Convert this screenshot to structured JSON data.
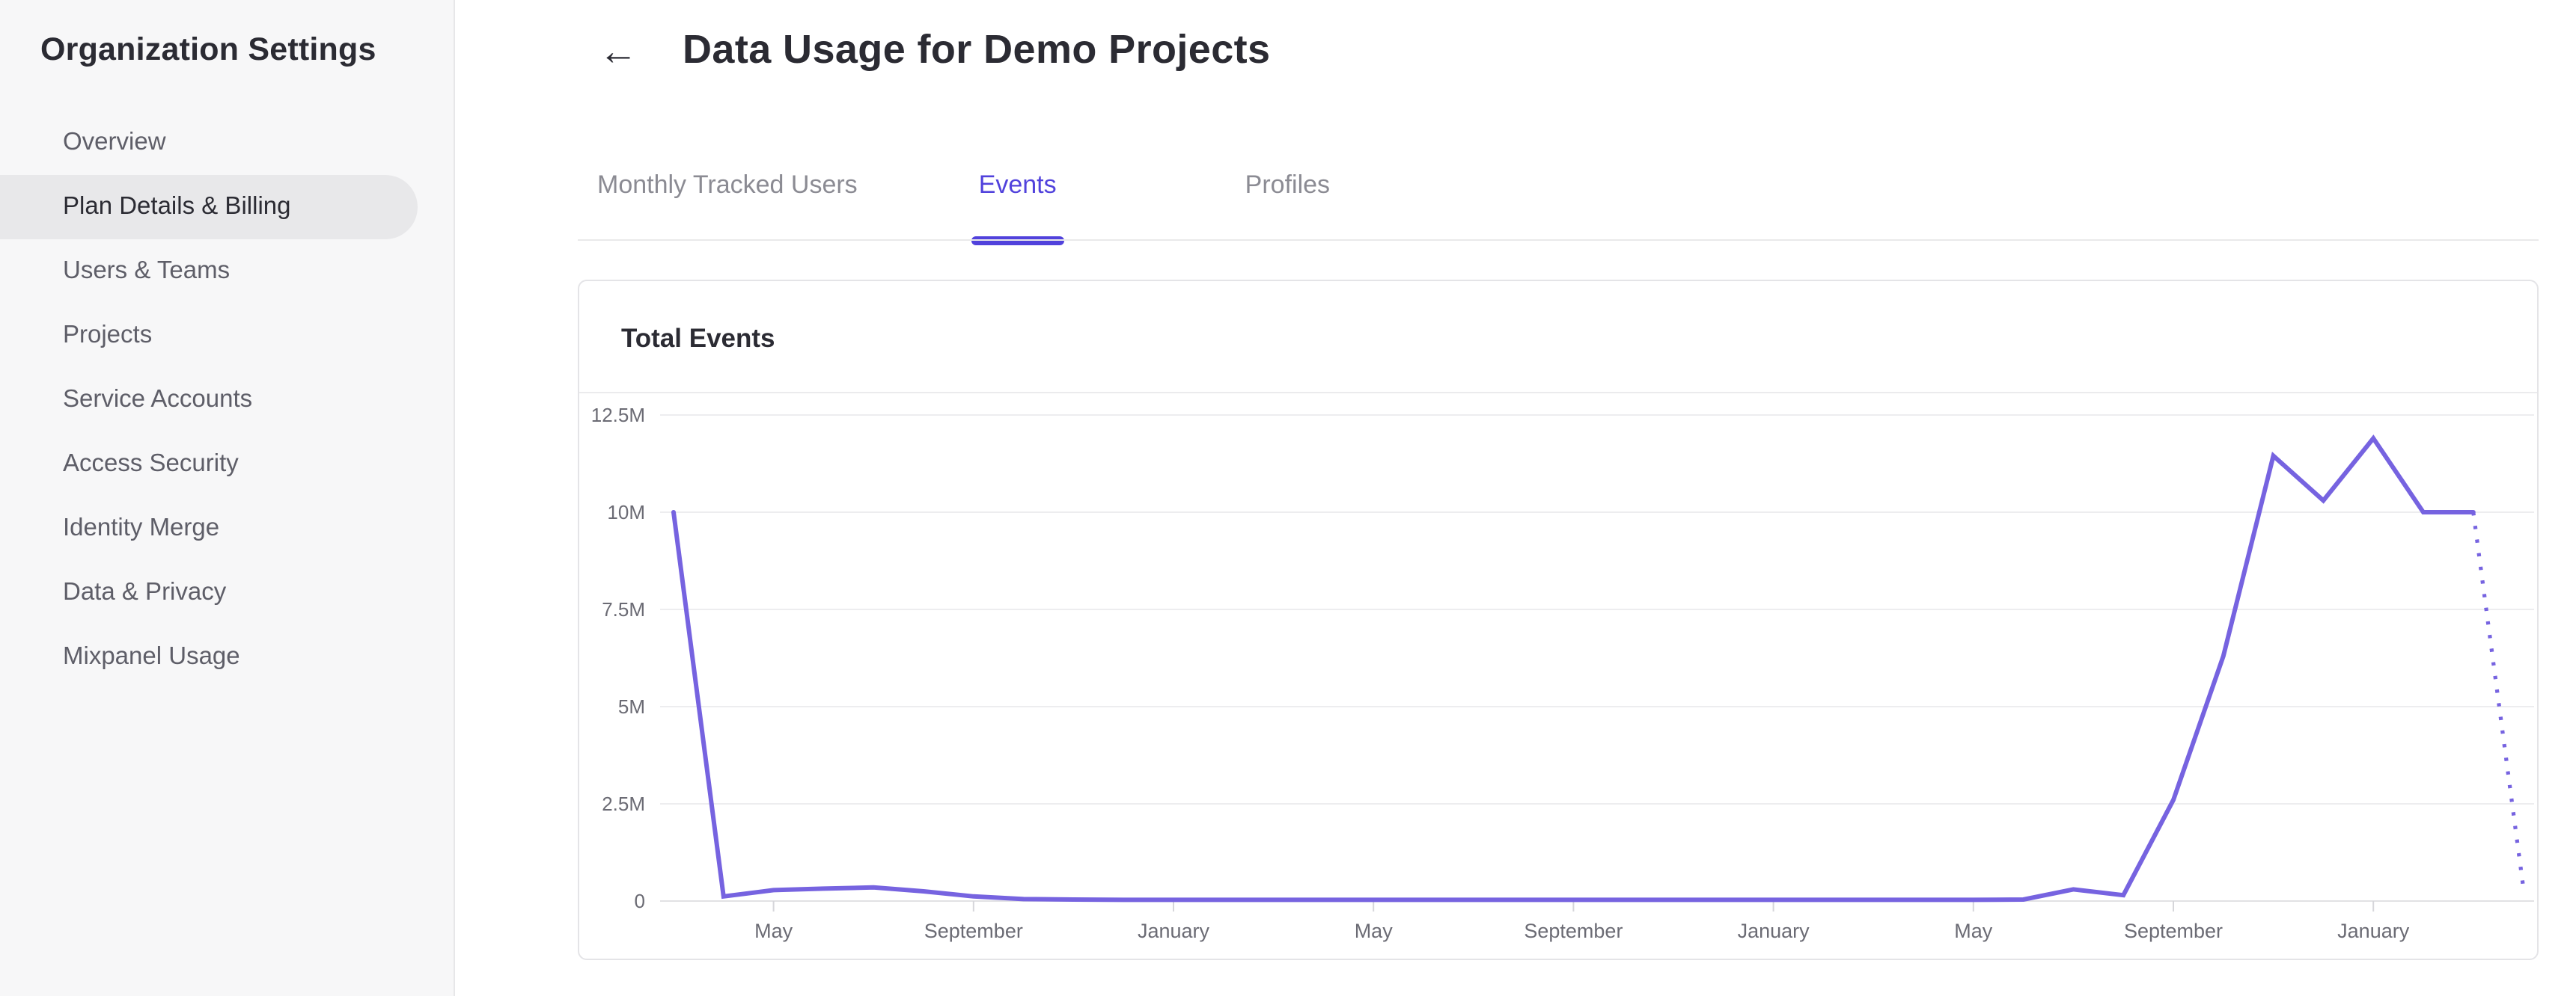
{
  "sidebar": {
    "title": "Organization Settings",
    "items": [
      {
        "label": "Overview",
        "active": false
      },
      {
        "label": "Plan Details & Billing",
        "active": true
      },
      {
        "label": "Users & Teams",
        "active": false
      },
      {
        "label": "Projects",
        "active": false
      },
      {
        "label": "Service Accounts",
        "active": false
      },
      {
        "label": "Access Security",
        "active": false
      },
      {
        "label": "Identity Merge",
        "active": false
      },
      {
        "label": "Data & Privacy",
        "active": false
      },
      {
        "label": "Mixpanel Usage",
        "active": false
      }
    ]
  },
  "header": {
    "back_icon": "←",
    "title": "Data Usage for Demo Projects"
  },
  "tabs": [
    {
      "label": "Monthly Tracked Users",
      "active": false
    },
    {
      "label": "Events",
      "active": true
    },
    {
      "label": "Profiles",
      "active": false
    }
  ],
  "card": {
    "title": "Total Events"
  },
  "colors": {
    "accent": "#5142dc",
    "line": "#7663e0",
    "grid": "#ededef",
    "baseline": "#e1e1e4",
    "tick": "#d6d6da",
    "axis_text": "#6b6b74"
  },
  "chart_data": {
    "type": "line",
    "title": "Total Events",
    "ylabel": "Events",
    "unit": "millions of events",
    "ylim": [
      0,
      12500000
    ],
    "grid": "horizontal",
    "legend_position": "none",
    "y_tick_labels": [
      "12.5M",
      "10M",
      "7.5M",
      "5M",
      "2.5M",
      "0"
    ],
    "x_tick_labels": [
      "May",
      "September",
      "January",
      "May",
      "September",
      "January",
      "May",
      "September",
      "January"
    ],
    "x_tick_month_indices": [
      2,
      6,
      10,
      14,
      18,
      22,
      26,
      30,
      34
    ],
    "months": [
      "2021-03",
      "2021-04",
      "2021-05",
      "2021-06",
      "2021-07",
      "2021-08",
      "2021-09",
      "2021-10",
      "2021-11",
      "2021-12",
      "2022-01",
      "2022-02",
      "2022-03",
      "2022-04",
      "2022-05",
      "2022-06",
      "2022-07",
      "2022-08",
      "2022-09",
      "2022-10",
      "2022-11",
      "2022-12",
      "2023-01",
      "2023-02",
      "2023-03",
      "2023-04",
      "2023-05",
      "2023-06",
      "2023-07",
      "2023-08",
      "2023-09",
      "2023-10",
      "2023-11",
      "2023-12",
      "2024-01",
      "2024-02",
      "2024-03",
      "2024-04"
    ],
    "values_millions": [
      10,
      0.12,
      0.28,
      0.32,
      0.35,
      0.25,
      0.12,
      0.05,
      0.04,
      0.03,
      0.03,
      0.03,
      0.03,
      0.03,
      0.03,
      0.03,
      0.03,
      0.03,
      0.03,
      0.03,
      0.03,
      0.03,
      0.03,
      0.03,
      0.03,
      0.03,
      0.03,
      0.04,
      0.3,
      0.15,
      2.6,
      6.3,
      11.45,
      10.3,
      11.9,
      10.0,
      10.0,
      0.35
    ],
    "dotted_from_index": 36
  }
}
